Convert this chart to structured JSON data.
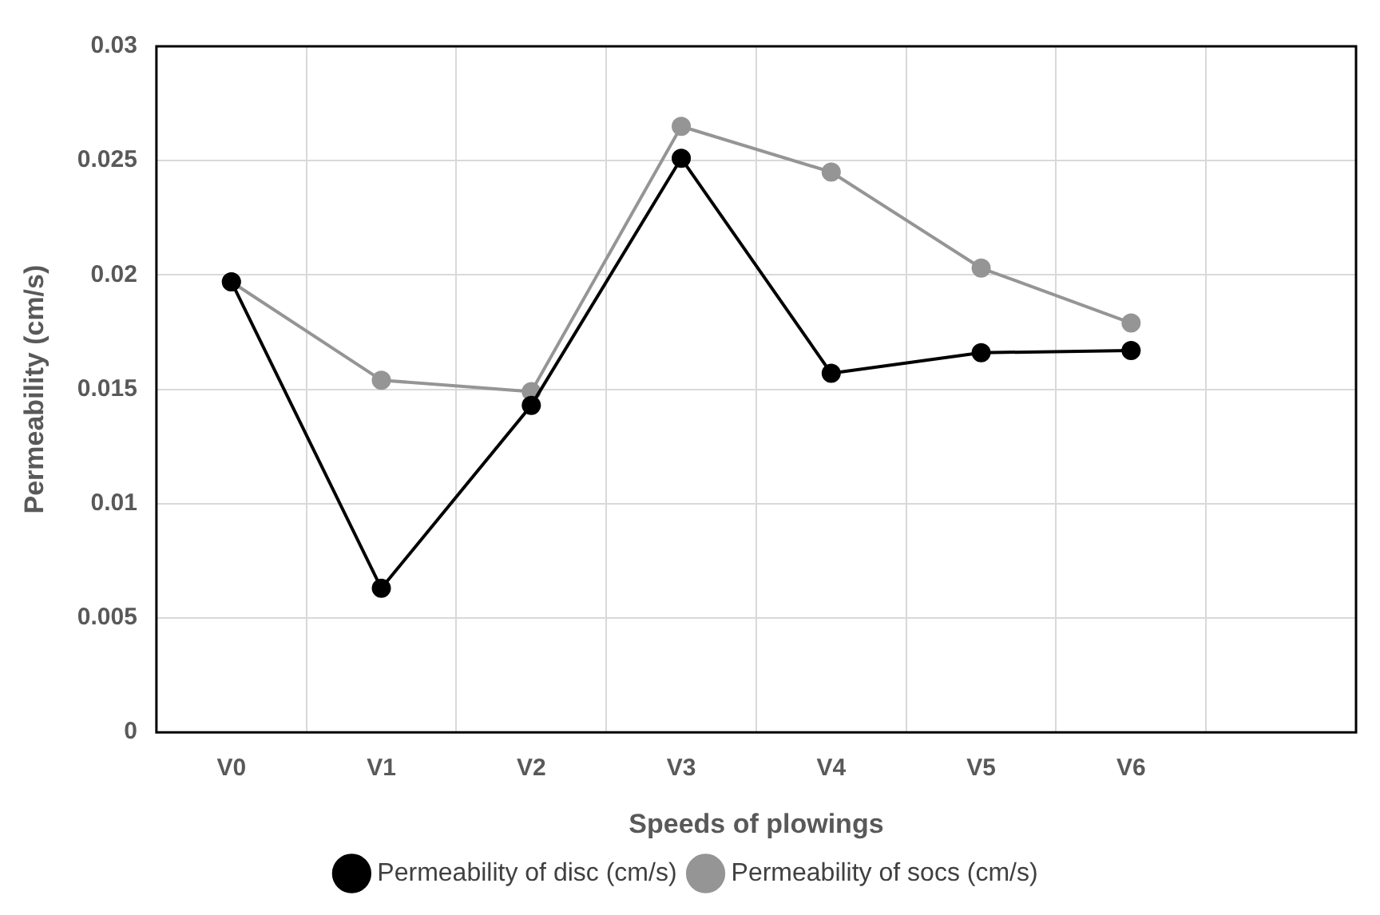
{
  "chart_data": {
    "type": "line",
    "xlabel": "Speeds of plowings",
    "ylabel": "Permeability (cm/s)",
    "categories": [
      "V0",
      "V1",
      "V2",
      "V3",
      "V4",
      "V5",
      "V6",
      null
    ],
    "series": [
      {
        "name": "Permeability of disc (cm/s)",
        "color": "#000000",
        "values": [
          0.0197,
          0.0063,
          0.0143,
          0.0251,
          0.0157,
          0.0166,
          0.0167,
          null
        ]
      },
      {
        "name": "Permeability of socs (cm/s)",
        "color": "#959595",
        "values": [
          0.0197,
          0.0154,
          0.0149,
          0.0265,
          0.0245,
          0.0203,
          0.0179,
          null
        ]
      }
    ],
    "ylim": [
      0,
      0.03
    ],
    "yticks": [
      0,
      0.005,
      0.01,
      0.015,
      0.02,
      0.025,
      0.03
    ],
    "grid": true,
    "legend": "bottom",
    "marker": "circle",
    "line_style": "solid"
  }
}
